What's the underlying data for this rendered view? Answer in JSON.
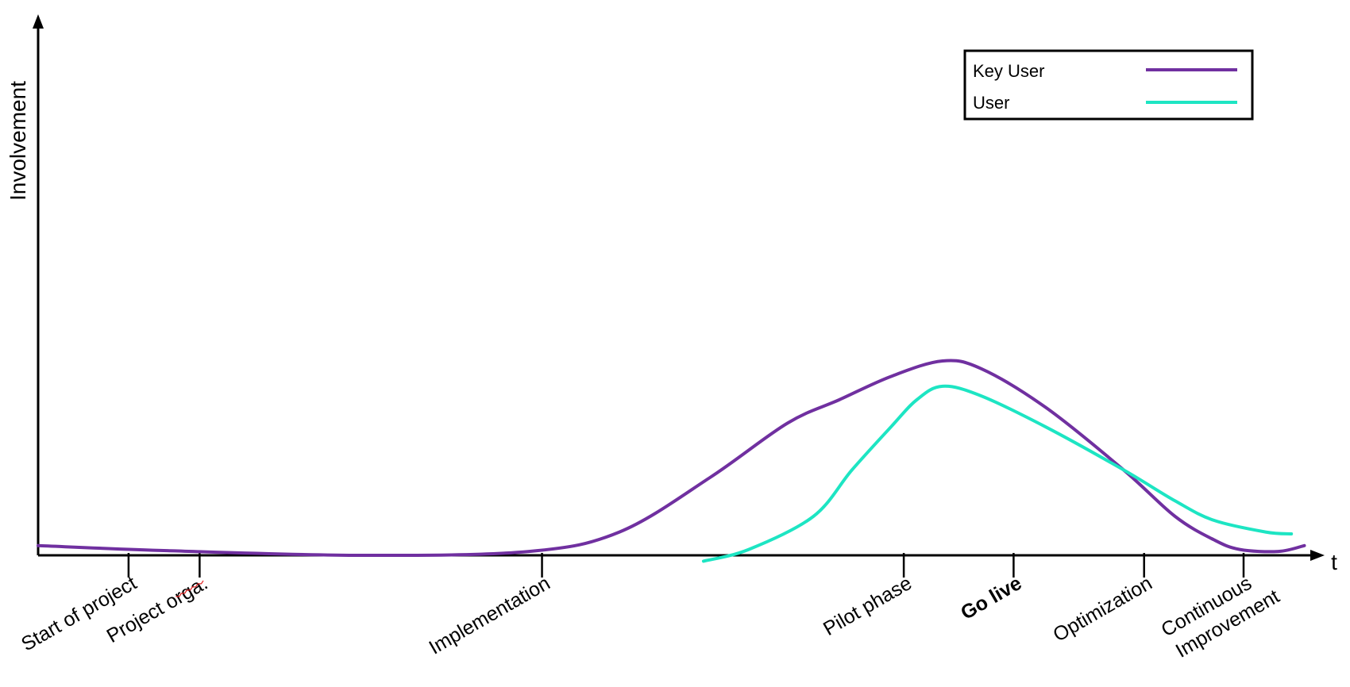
{
  "chart_data": {
    "type": "line",
    "title": "",
    "ylabel": "Involvement",
    "xlabel": "t",
    "xlim": [
      0,
      100
    ],
    "ylim": [
      0,
      100
    ],
    "grid": false,
    "legend_position": "top-right",
    "milestones": [
      {
        "label": "Start of project",
        "x": 7.0,
        "bold": false
      },
      {
        "label": "Project orga.",
        "x": 12.5,
        "bold": false
      },
      {
        "label": "Implementation",
        "x": 39.0,
        "bold": false
      },
      {
        "label": "Pilot phase",
        "x": 67.0,
        "bold": false
      },
      {
        "label": "Go live",
        "x": 75.5,
        "bold": true
      },
      {
        "label": "Optimization",
        "x": 85.6,
        "bold": false
      },
      {
        "label": "Continuous\nImprovement",
        "x": 93.3,
        "bold": false
      }
    ],
    "series": [
      {
        "name": "Key User",
        "color": "#7030a0",
        "points": [
          [
            0,
            2.5
          ],
          [
            10,
            1.2
          ],
          [
            25,
            0
          ],
          [
            38,
            1
          ],
          [
            45,
            6
          ],
          [
            52,
            20
          ],
          [
            58,
            34
          ],
          [
            62,
            40
          ],
          [
            66,
            46
          ],
          [
            70,
            50
          ],
          [
            73,
            48
          ],
          [
            78,
            38
          ],
          [
            84,
            22
          ],
          [
            88,
            10
          ],
          [
            91,
            4
          ],
          [
            93,
            1.5
          ],
          [
            96,
            1
          ],
          [
            98,
            2.5
          ]
        ]
      },
      {
        "name": "User",
        "color": "#1de5c3",
        "points": [
          [
            51.5,
            -1.5
          ],
          [
            55,
            1.5
          ],
          [
            60,
            10
          ],
          [
            63,
            22
          ],
          [
            66,
            33
          ],
          [
            68,
            40
          ],
          [
            70,
            43.5
          ],
          [
            73,
            41
          ],
          [
            78,
            33
          ],
          [
            84,
            22
          ],
          [
            88,
            14
          ],
          [
            91,
            9
          ],
          [
            95,
            6
          ],
          [
            97,
            5.5
          ]
        ]
      }
    ]
  }
}
